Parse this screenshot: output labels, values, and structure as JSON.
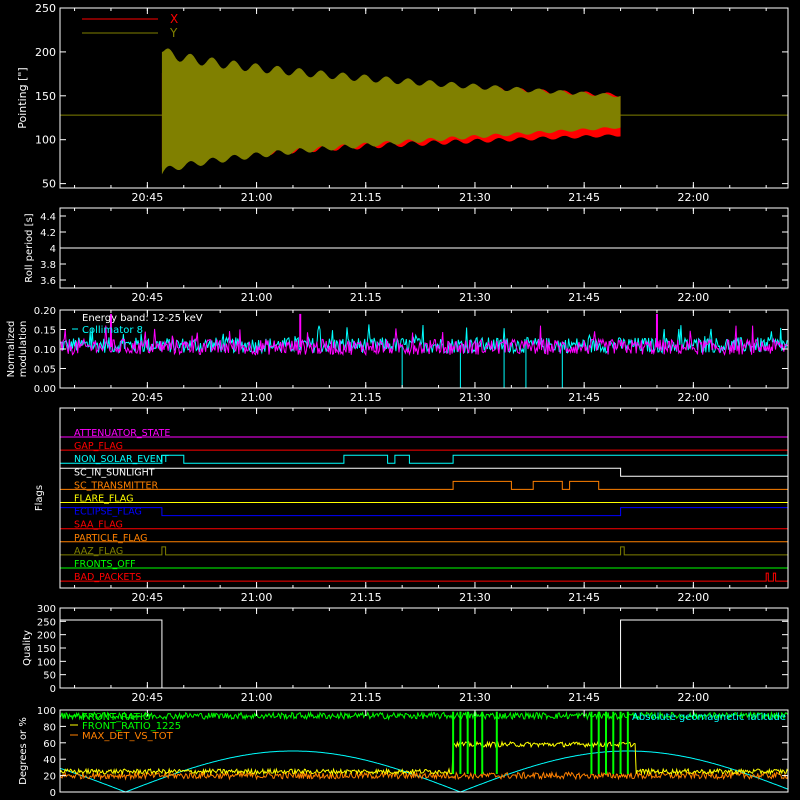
{
  "time_axis": {
    "start": "20:33",
    "end": "22:13",
    "ticks": [
      "20:45",
      "21:00",
      "21:15",
      "21:30",
      "21:45",
      "22:00"
    ]
  },
  "chart_data": [
    {
      "id": "pointing",
      "type": "area",
      "title": "",
      "ylabel": "Pointing [\"]",
      "ylim": [
        45,
        250
      ],
      "yticks": [
        50,
        100,
        150,
        200,
        250
      ],
      "legend_placement": "top-left",
      "baseline_value": 128,
      "series": [
        {
          "name": "X",
          "color": "#ff0000",
          "t_start": "20:47",
          "t_end": "21:50",
          "center": 128,
          "amplitude_start": 55,
          "amplitude_end": 23,
          "wobble": 12
        },
        {
          "name": "Y",
          "color": "#808000",
          "t_start": "20:47",
          "t_end": "21:50",
          "center": 132,
          "amplitude_start": 70,
          "amplitude_end": 18,
          "wobble": 10
        }
      ]
    },
    {
      "id": "roll",
      "type": "line",
      "title": "",
      "ylabel": "Roll period [s]",
      "ylim": [
        3.5,
        4.5
      ],
      "yticks": [
        3.6,
        3.8,
        4.0,
        4.2,
        4.4
      ],
      "series": [
        {
          "name": "",
          "color": "#ffffff",
          "value": 4.0
        }
      ]
    },
    {
      "id": "modulation",
      "type": "line",
      "title": "",
      "ylabel": "Normalized modulation",
      "ylim": [
        0,
        0.2
      ],
      "yticks": [
        "0.00",
        "0.05",
        "0.10",
        "0.15",
        "0.20"
      ],
      "annotation": "Energy band: 12-25 keV",
      "series": [
        {
          "name": "Collimator 8",
          "color": "#00ffff",
          "mean": 0.11,
          "noise": 0.02,
          "dropouts": [
            "21:20",
            "21:28",
            "21:34",
            "21:37",
            "21:42"
          ]
        },
        {
          "name": "",
          "color": "#ff00ff",
          "mean": 0.105,
          "noise": 0.02,
          "spikes": [
            "21:06",
            "20:40",
            "21:55"
          ]
        }
      ]
    },
    {
      "id": "flags",
      "type": "line",
      "title": "",
      "ylabel": "Flags",
      "flags": [
        {
          "label": "ATTENUATOR_STATE",
          "color": "#ff00ff",
          "high": []
        },
        {
          "label": "GAP_FLAG",
          "color": "#ff0000",
          "high": []
        },
        {
          "label": "NON_SOLAR_EVENT",
          "color": "#00ffff",
          "high": [
            [
              "20:47",
              "20:50"
            ],
            [
              "21:12",
              "21:18"
            ],
            [
              "21:19",
              "21:21"
            ],
            [
              "21:27",
              "22:13"
            ]
          ]
        },
        {
          "label": "SC_IN_SUNLIGHT",
          "color": "#ffffff",
          "high": [
            [
              "20:33",
              "21:50"
            ]
          ]
        },
        {
          "label": "SC_TRANSMITTER",
          "color": "#ff8000",
          "high": [
            [
              "21:27",
              "21:35"
            ],
            [
              "21:38",
              "21:42"
            ],
            [
              "21:43",
              "21:47"
            ]
          ]
        },
        {
          "label": "FLARE_FLAG",
          "color": "#ffff00",
          "high": []
        },
        {
          "label": "ECLIPSE_FLAG",
          "color": "#0000ff",
          "high": [
            [
              "20:33",
              "20:47"
            ],
            [
              "21:50",
              "22:13"
            ]
          ]
        },
        {
          "label": "SAA_FLAG",
          "color": "#ff0000",
          "high": []
        },
        {
          "label": "PARTICLE_FLAG",
          "color": "#ff8000",
          "high": []
        },
        {
          "label": "AAZ_FLAG",
          "color": "#808000",
          "high": [
            [
              "20:47",
              "20:47.5"
            ],
            [
              "21:50",
              "21:50.5"
            ]
          ]
        },
        {
          "label": "FRONTS_OFF",
          "color": "#00ff00",
          "high": []
        },
        {
          "label": "BAD_PACKETS",
          "color": "#ff0000",
          "high": [
            [
              "22:10",
              "22:10.3"
            ],
            [
              "22:11",
              "22:11.3"
            ]
          ]
        }
      ]
    },
    {
      "id": "quality",
      "type": "line",
      "title": "",
      "ylabel": "Quality",
      "ylim": [
        0,
        300
      ],
      "yticks": [
        0,
        50,
        100,
        150,
        200,
        250,
        300
      ],
      "series": [
        {
          "name": "",
          "color": "#ffffff",
          "high_value": 255,
          "high": [
            [
              "20:33",
              "20:47"
            ],
            [
              "21:50",
              "22:13"
            ]
          ]
        }
      ]
    },
    {
      "id": "ratios",
      "type": "line",
      "title": "",
      "ylabel": "Degrees or %",
      "ylim": [
        0,
        100
      ],
      "yticks": [
        0,
        20,
        40,
        60,
        80,
        100
      ],
      "series": [
        {
          "name": "FRONT_RATIO",
          "color": "#00ff00",
          "mean": 93,
          "noise": 4,
          "dips": [
            "21:27",
            "21:28",
            "21:29",
            "21:30",
            "21:31",
            "21:33",
            "21:46",
            "21:47",
            "21:48",
            "21:49",
            "21:50",
            "21:51"
          ]
        },
        {
          "name": "FRONT_RATIO_1225",
          "color": "#ffff00",
          "level_low": 25,
          "level_high": 58,
          "high": [
            [
              "21:27",
              "21:52"
            ]
          ]
        },
        {
          "name": "MAX_DET_VS_TOT",
          "color": "#ff8000",
          "mean": 20,
          "noise": 4
        },
        {
          "name": "Absolute geomagnetic latitude",
          "color": "#00ffff",
          "amplitude": 50,
          "period_minutes": 46,
          "phase_minutes": -9
        }
      ]
    }
  ]
}
